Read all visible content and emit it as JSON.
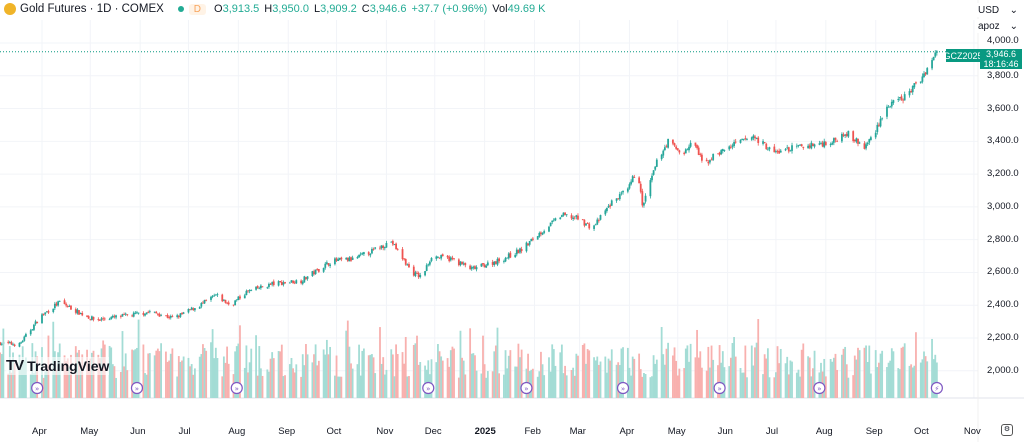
{
  "legend": {
    "title": "Gold Futures · 1D · COMEX",
    "interval_badge": "D",
    "o_label": "O",
    "open": "3,913.5",
    "h_label": "H",
    "high": "3,950.0",
    "l_label": "L",
    "low": "3,909.2",
    "c_label": "C",
    "close": "3,946.6",
    "change": "+37.7 (+0.96%)",
    "vol_label": "Vol",
    "volume": "49.69 K"
  },
  "right_controls": {
    "currency": "USD",
    "unit": "apoz"
  },
  "price_tag": {
    "symbol": "GCZ2025",
    "price": "3,946.6",
    "countdown": "18:16:46"
  },
  "logo": "TradingView",
  "colors": {
    "up": "#26a69a",
    "down": "#ef5350",
    "vol_up": "#a3dcd5",
    "vol_down": "#f8b0ae",
    "accent": "#089981",
    "event": "#7e57c2"
  },
  "chart_data": {
    "type": "candlestick",
    "symbol": "GCZ2025",
    "ylim": [
      1900,
      4060
    ],
    "y_ticks": [
      "4,000.0",
      "3,800.0",
      "3,600.0",
      "3,400.0",
      "3,200.0",
      "3,000.0",
      "2,800.0",
      "2,600.0",
      "2,400.0",
      "2,200.0",
      "2,000.0"
    ],
    "x_ticks": [
      {
        "label": "Apr",
        "date": "2024-04-01"
      },
      {
        "label": "May",
        "date": "2024-05-01"
      },
      {
        "label": "Jun",
        "date": "2024-06-01"
      },
      {
        "label": "Jul",
        "date": "2024-07-01"
      },
      {
        "label": "Aug",
        "date": "2024-08-01"
      },
      {
        "label": "Sep",
        "date": "2024-09-01"
      },
      {
        "label": "Oct",
        "date": "2024-10-01"
      },
      {
        "label": "Nov",
        "date": "2024-11-01"
      },
      {
        "label": "Dec",
        "date": "2024-12-01"
      },
      {
        "label": "2025",
        "date": "2025-01-01"
      },
      {
        "label": "Feb",
        "date": "2025-02-01"
      },
      {
        "label": "Mar",
        "date": "2025-03-01"
      },
      {
        "label": "Apr",
        "date": "2025-04-01"
      },
      {
        "label": "May",
        "date": "2025-05-01"
      },
      {
        "label": "Jun",
        "date": "2025-06-01"
      },
      {
        "label": "Jul",
        "date": "2025-07-01"
      },
      {
        "label": "Aug",
        "date": "2025-08-01"
      },
      {
        "label": "Sep",
        "date": "2025-09-01"
      },
      {
        "label": "Oct",
        "date": "2025-10-01"
      },
      {
        "label": "Nov",
        "date": "2025-11-01"
      }
    ],
    "close_path": [
      [
        "2024-03-06",
        2170
      ],
      [
        "2024-03-18",
        2160
      ],
      [
        "2024-03-31",
        2330
      ],
      [
        "2024-04-12",
        2420
      ],
      [
        "2024-04-25",
        2350
      ],
      [
        "2024-05-04",
        2310
      ],
      [
        "2024-05-26",
        2340
      ],
      [
        "2024-06-07",
        2360
      ],
      [
        "2024-06-22",
        2320
      ],
      [
        "2024-07-08",
        2400
      ],
      [
        "2024-07-18",
        2460
      ],
      [
        "2024-07-27",
        2400
      ],
      [
        "2024-08-06",
        2480
      ],
      [
        "2024-08-22",
        2530
      ],
      [
        "2024-09-09",
        2550
      ],
      [
        "2024-09-28",
        2670
      ],
      [
        "2024-10-11",
        2680
      ],
      [
        "2024-10-23",
        2730
      ],
      [
        "2024-11-04",
        2790
      ],
      [
        "2024-11-17",
        2600
      ],
      [
        "2024-11-23",
        2570
      ],
      [
        "2024-11-29",
        2700
      ],
      [
        "2024-12-12",
        2680
      ],
      [
        "2024-12-24",
        2620
      ],
      [
        "2025-01-12",
        2680
      ],
      [
        "2025-01-24",
        2740
      ],
      [
        "2025-02-03",
        2830
      ],
      [
        "2025-02-18",
        2950
      ],
      [
        "2025-02-28",
        2930
      ],
      [
        "2025-03-09",
        2870
      ],
      [
        "2025-03-22",
        3040
      ],
      [
        "2025-03-31",
        3100
      ],
      [
        "2025-04-06",
        3240
      ],
      [
        "2025-04-09",
        3000
      ],
      [
        "2025-04-19",
        3300
      ],
      [
        "2025-04-25",
        3400
      ],
      [
        "2025-05-04",
        3320
      ],
      [
        "2025-05-11",
        3400
      ],
      [
        "2025-05-17",
        3250
      ],
      [
        "2025-05-23",
        3310
      ],
      [
        "2025-06-05",
        3380
      ],
      [
        "2025-06-17",
        3430
      ],
      [
        "2025-06-30",
        3330
      ],
      [
        "2025-07-12",
        3360
      ],
      [
        "2025-07-25",
        3380
      ],
      [
        "2025-08-06",
        3400
      ],
      [
        "2025-08-13",
        3460
      ],
      [
        "2025-08-25",
        3360
      ],
      [
        "2025-08-31",
        3450
      ],
      [
        "2025-09-07",
        3600
      ],
      [
        "2025-09-19",
        3670
      ],
      [
        "2025-09-29",
        3780
      ],
      [
        "2025-10-09",
        3946.6
      ]
    ],
    "last_price": 3946.6,
    "events": [
      {
        "date": "2024-03-29",
        "type": "dividend"
      },
      {
        "date": "2024-05-30",
        "type": "split"
      },
      {
        "date": "2024-07-31",
        "type": "split"
      },
      {
        "date": "2024-11-27",
        "type": "split"
      },
      {
        "date": "2025-01-27",
        "type": "split"
      },
      {
        "date": "2025-03-28",
        "type": "split"
      },
      {
        "date": "2025-05-27",
        "type": "split"
      },
      {
        "date": "2025-07-28",
        "type": "split"
      },
      {
        "date": "2025-10-09",
        "type": "earnings"
      }
    ]
  }
}
